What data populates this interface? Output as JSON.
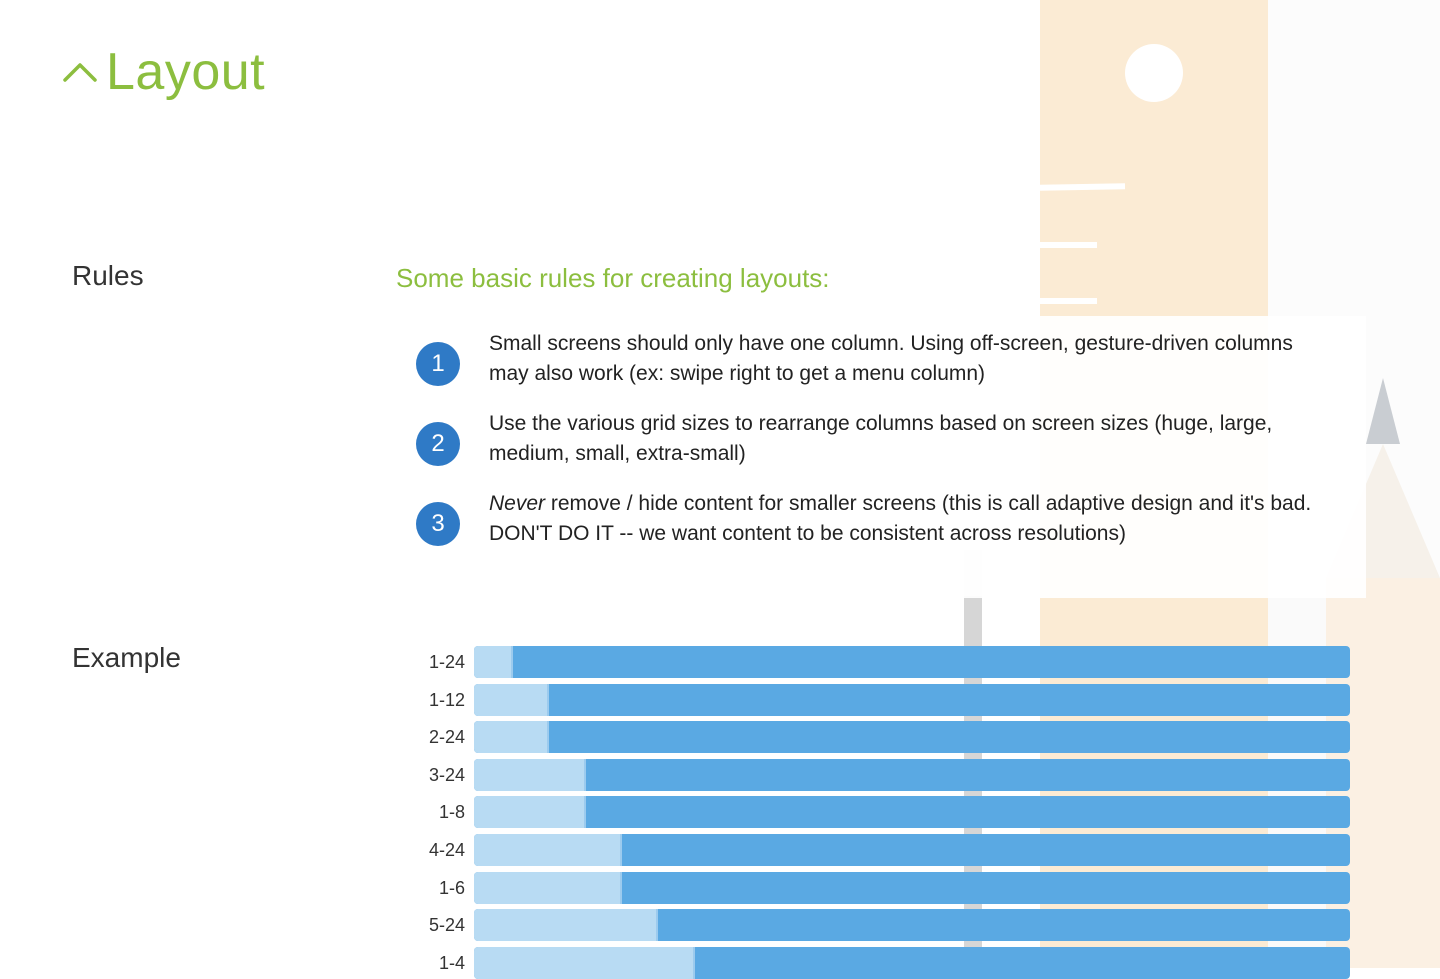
{
  "header": {
    "title": "Layout",
    "toggle_icon": "chevron-up-icon"
  },
  "sections": {
    "rules_label": "Rules",
    "example_label": "Example"
  },
  "rules": {
    "intro": "Some basic rules for creating layouts:",
    "items": [
      {
        "number": "1",
        "emphasis": "",
        "text": "Small screens should only have one column. Using off-screen, gesture-driven columns may also work (ex: swipe right to get a menu column)"
      },
      {
        "number": "2",
        "emphasis": "",
        "text": "Use the various grid sizes to rearrange columns based on screen sizes (huge, large, medium, small, extra-small)"
      },
      {
        "number": "3",
        "emphasis": "Never",
        "text": " remove / hide content for smaller screens (this is call adaptive design and it's bad. DON'T DO IT -- we want content to be consistent across resolutions)"
      }
    ]
  },
  "example": {
    "rows": [
      {
        "label": "1-24",
        "fraction": 0.0417
      },
      {
        "label": "1-12",
        "fraction": 0.0833
      },
      {
        "label": "2-24",
        "fraction": 0.0833
      },
      {
        "label": "3-24",
        "fraction": 0.125
      },
      {
        "label": "1-8",
        "fraction": 0.125
      },
      {
        "label": "4-24",
        "fraction": 0.1667
      },
      {
        "label": "1-6",
        "fraction": 0.1667
      },
      {
        "label": "5-24",
        "fraction": 0.2083
      },
      {
        "label": "1-4",
        "fraction": 0.25
      }
    ]
  },
  "colors": {
    "accent_green": "#8cbe3f",
    "rule_badge_blue": "#2f7ac6",
    "bar_blue": "#5aa9e3",
    "bar_fill_light": "#b8dbf3"
  }
}
